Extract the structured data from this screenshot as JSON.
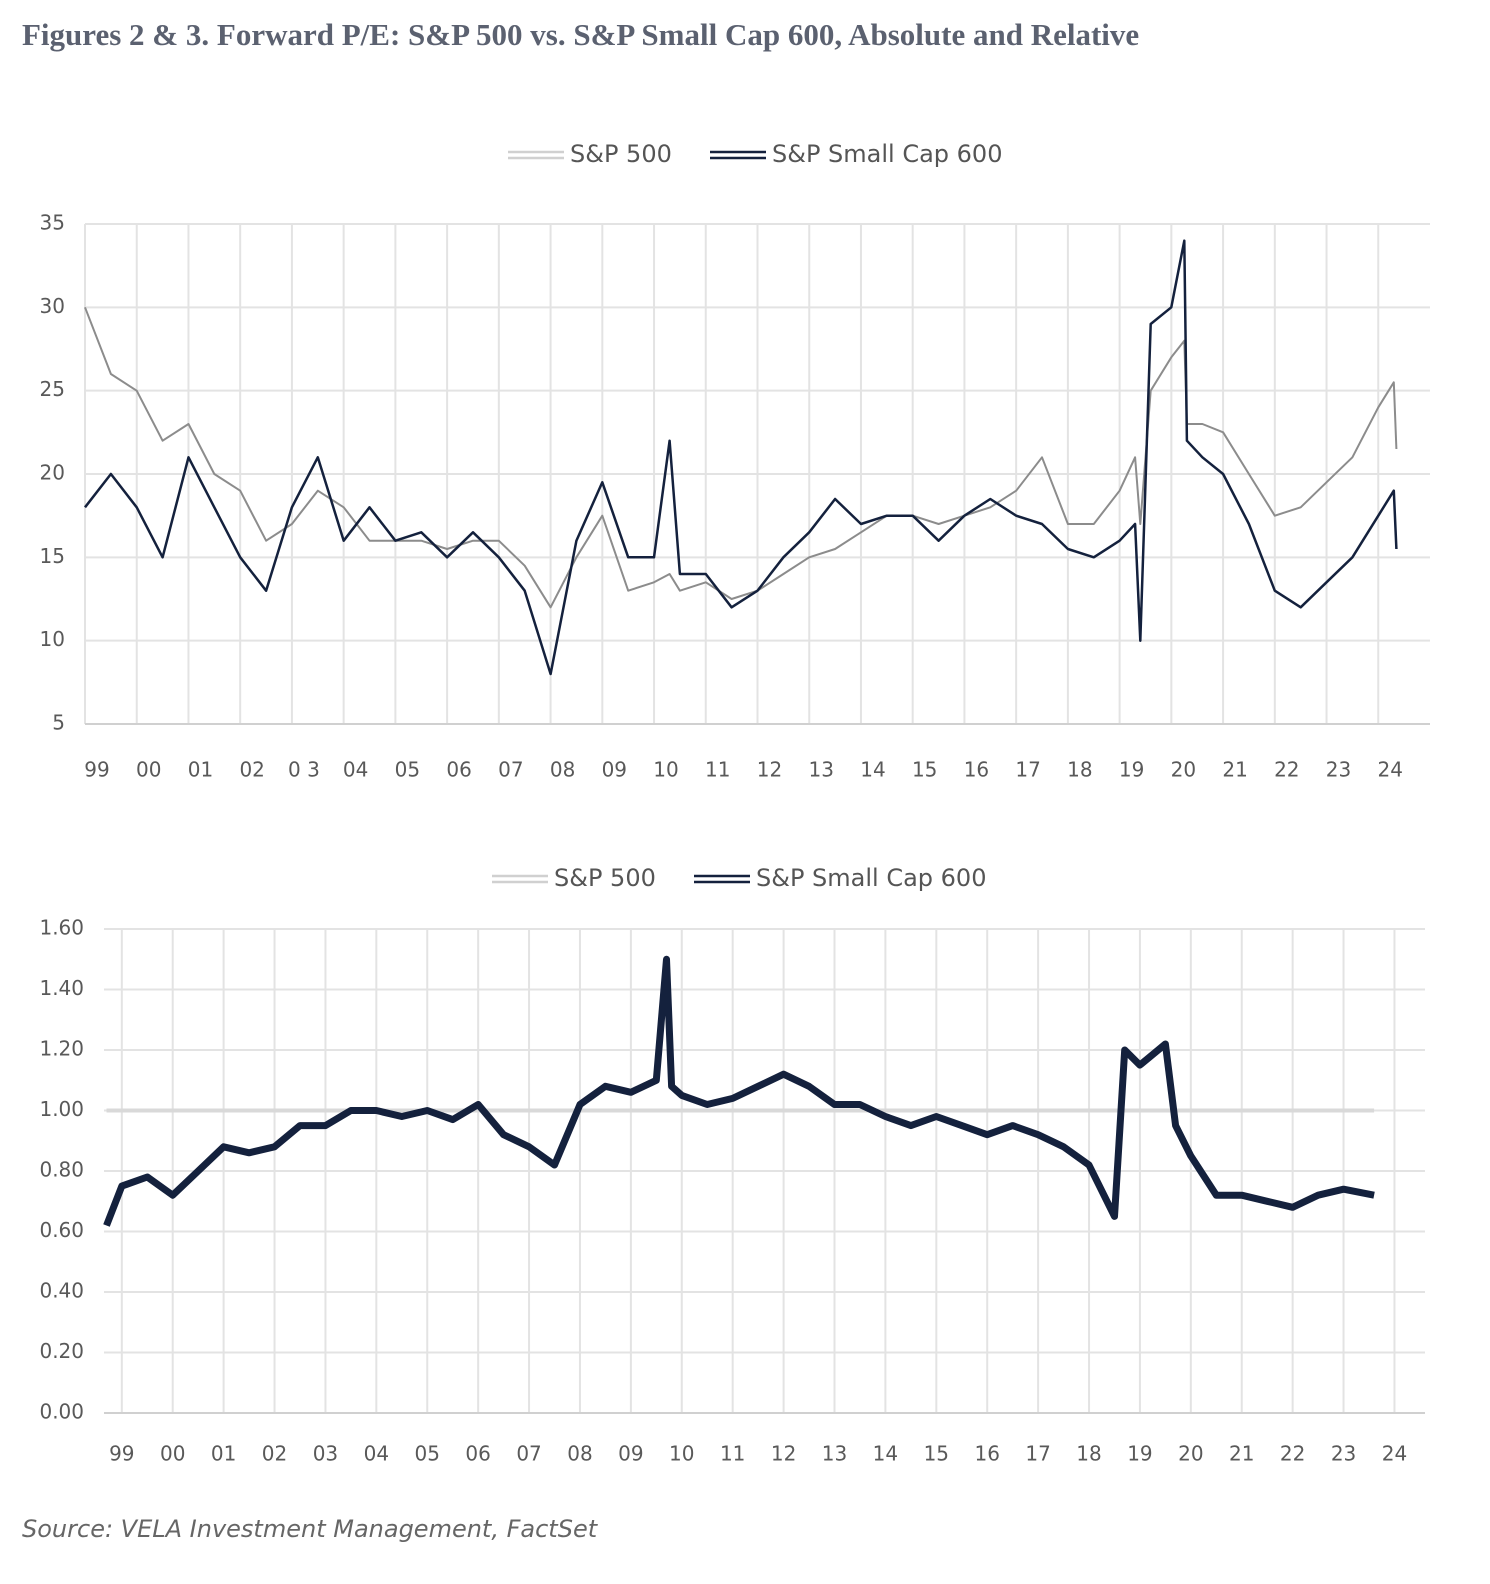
{
  "title": "Figures 2 & 3. Forward P/E: S&P 500 vs. S&P Small Cap 600, Absolute and Relative",
  "source": "Source: VELA Investment Management, FactSet",
  "chart_data": [
    {
      "type": "line",
      "legend": "top",
      "grid": true,
      "x": [
        1999,
        1999.5,
        2000,
        2000.5,
        2001,
        2001.5,
        2002,
        2002.5,
        2003,
        2003.5,
        2004,
        2004.5,
        2005,
        2005.5,
        2006,
        2006.5,
        2007,
        2007.5,
        2008,
        2008.5,
        2009,
        2009.5,
        2010,
        2010.3,
        2010.5,
        2011,
        2011.5,
        2012,
        2012.5,
        2013,
        2013.5,
        2014,
        2014.5,
        2015,
        2015.5,
        2016,
        2016.5,
        2017,
        2017.5,
        2018,
        2018.5,
        2019,
        2019.3,
        2019.4,
        2019.6,
        2020,
        2020.25,
        2020.3,
        2020.6,
        2021,
        2021.5,
        2022,
        2022.5,
        2023,
        2023.5,
        2024,
        2024.3,
        2024.35
      ],
      "series": [
        {
          "name": "S&P 500",
          "color": "#8c8c8c",
          "legend_color": "#d0d0d0",
          "values": [
            30,
            26,
            25,
            22,
            23,
            20,
            19,
            16,
            17,
            19,
            18,
            16,
            16,
            16,
            15.5,
            16,
            16,
            14.5,
            12,
            15,
            17.5,
            13,
            13.5,
            14,
            13,
            13.5,
            12.5,
            13,
            14,
            15,
            15.5,
            16.5,
            17.5,
            17.5,
            17,
            17.5,
            18,
            19,
            21,
            17,
            17,
            19,
            21,
            17,
            25,
            27,
            28,
            23,
            23,
            22.5,
            20,
            17.5,
            18,
            19.5,
            21,
            24,
            25.5,
            21.5
          ]
        },
        {
          "name": "S&P Small Cap 600",
          "color": "#14213d",
          "legend_color": "#14213d",
          "values": [
            18,
            20,
            18,
            15,
            21,
            18,
            15,
            13,
            18,
            21,
            16,
            18,
            16,
            16.5,
            15,
            16.5,
            15,
            13,
            8,
            16,
            19.5,
            15,
            15,
            22,
            14,
            14,
            12,
            13,
            15,
            16.5,
            18.5,
            17,
            17.5,
            17.5,
            16,
            17.5,
            18.5,
            17.5,
            17,
            15.5,
            15,
            16,
            17,
            10,
            29,
            30,
            34,
            22,
            21,
            20,
            17,
            13,
            12,
            13.5,
            15,
            17.5,
            19,
            15.5
          ]
        }
      ],
      "xlim": [
        1999,
        2025
      ],
      "xticks": [
        {
          "value": 1999,
          "label": "99"
        },
        {
          "value": 2000,
          "label": "00"
        },
        {
          "value": 2001,
          "label": "01"
        },
        {
          "value": 2002,
          "label": "02"
        },
        {
          "value": 2003,
          "label": "0 3"
        },
        {
          "value": 2004,
          "label": "04"
        },
        {
          "value": 2005,
          "label": "05"
        },
        {
          "value": 2006,
          "label": "06"
        },
        {
          "value": 2007,
          "label": "07"
        },
        {
          "value": 2008,
          "label": "08"
        },
        {
          "value": 2009,
          "label": "09"
        },
        {
          "value": 2010,
          "label": "10"
        },
        {
          "value": 2011,
          "label": "11"
        },
        {
          "value": 2012,
          "label": "12"
        },
        {
          "value": 2013,
          "label": "13"
        },
        {
          "value": 2014,
          "label": "14"
        },
        {
          "value": 2015,
          "label": "15"
        },
        {
          "value": 2016,
          "label": "16"
        },
        {
          "value": 2017,
          "label": "17"
        },
        {
          "value": 2018,
          "label": "18"
        },
        {
          "value": 2019,
          "label": "19"
        },
        {
          "value": 2020,
          "label": "20"
        },
        {
          "value": 2021,
          "label": "21"
        },
        {
          "value": 2022,
          "label": "22"
        },
        {
          "value": 2023,
          "label": "23"
        },
        {
          "value": 2024,
          "label": "24"
        }
      ],
      "ylim": [
        5,
        35
      ],
      "yticks": [
        5,
        10,
        15,
        20,
        25,
        30,
        35
      ]
    },
    {
      "type": "line",
      "legend": "top",
      "grid": true,
      "x": [
        1998.7,
        1999,
        1999.5,
        2000,
        2000.5,
        2001,
        2001.5,
        2002,
        2002.5,
        2003,
        2003.5,
        2004,
        2004.5,
        2005,
        2005.5,
        2006,
        2006.5,
        2007,
        2007.5,
        2008,
        2008.5,
        2009,
        2009.5,
        2009.7,
        2009.8,
        2010,
        2010.5,
        2011,
        2011.5,
        2012,
        2012.5,
        2013,
        2013.5,
        2014,
        2014.5,
        2015,
        2015.5,
        2016,
        2016.5,
        2017,
        2017.5,
        2018,
        2018.5,
        2018.7,
        2019,
        2019.5,
        2019.7,
        2020,
        2020.5,
        2021,
        2021.5,
        2022,
        2022.5,
        2023,
        2023.6
      ],
      "series": [
        {
          "name": "S&P 500",
          "color": "#d9d9d9",
          "legend_color": "#d0d0d0",
          "values": [
            1,
            1,
            1,
            1,
            1,
            1,
            1,
            1,
            1,
            1,
            1,
            1,
            1,
            1,
            1,
            1,
            1,
            1,
            1,
            1,
            1,
            1,
            1,
            1,
            1,
            1,
            1,
            1,
            1,
            1,
            1,
            1,
            1,
            1,
            1,
            1,
            1,
            1,
            1,
            1,
            1,
            1,
            1,
            1,
            1,
            1,
            1,
            1,
            1,
            1,
            1,
            1,
            1,
            1,
            1
          ]
        },
        {
          "name": "S&P Small Cap 600",
          "color": "#14213d",
          "legend_color": "#14213d",
          "values": [
            0.62,
            0.75,
            0.78,
            0.72,
            0.8,
            0.88,
            0.86,
            0.88,
            0.95,
            0.95,
            1,
            1,
            0.98,
            1,
            0.97,
            1.02,
            0.92,
            0.88,
            0.82,
            1.02,
            1.08,
            1.06,
            1.1,
            1.5,
            1.08,
            1.05,
            1.02,
            1.04,
            1.08,
            1.12,
            1.08,
            1.02,
            1.02,
            0.98,
            0.95,
            0.98,
            0.95,
            0.92,
            0.95,
            0.92,
            0.88,
            0.82,
            0.65,
            1.2,
            1.15,
            1.22,
            0.95,
            0.85,
            0.72,
            0.72,
            0.7,
            0.68,
            0.72,
            0.74,
            0.72
          ]
        }
      ],
      "xlim": [
        1998.65,
        2024.6
      ],
      "xticks": [
        {
          "value": 1999,
          "label": "99"
        },
        {
          "value": 2000,
          "label": "00"
        },
        {
          "value": 2001,
          "label": "01"
        },
        {
          "value": 2002,
          "label": "02"
        },
        {
          "value": 2003,
          "label": "03"
        },
        {
          "value": 2004,
          "label": "04"
        },
        {
          "value": 2005,
          "label": "05"
        },
        {
          "value": 2006,
          "label": "06"
        },
        {
          "value": 2007,
          "label": "07"
        },
        {
          "value": 2008,
          "label": "08"
        },
        {
          "value": 2009,
          "label": "09"
        },
        {
          "value": 2010,
          "label": "10"
        },
        {
          "value": 2011,
          "label": "11"
        },
        {
          "value": 2012,
          "label": "12"
        },
        {
          "value": 2013,
          "label": "13"
        },
        {
          "value": 2014,
          "label": "14"
        },
        {
          "value": 2015,
          "label": "15"
        },
        {
          "value": 2016,
          "label": "16"
        },
        {
          "value": 2017,
          "label": "17"
        },
        {
          "value": 2018,
          "label": "18"
        },
        {
          "value": 2019,
          "label": "19"
        },
        {
          "value": 2020,
          "label": "20"
        },
        {
          "value": 2021,
          "label": "21"
        },
        {
          "value": 2022,
          "label": "22"
        },
        {
          "value": 2023,
          "label": "23"
        },
        {
          "value": 2024,
          "label": "24"
        }
      ],
      "ylim": [
        0,
        1.6
      ],
      "yticks": [
        {
          "value": 0,
          "label": "0.00"
        },
        {
          "value": 0.2,
          "label": "0.20"
        },
        {
          "value": 0.4,
          "label": "0.40"
        },
        {
          "value": 0.6,
          "label": "0.60"
        },
        {
          "value": 0.8,
          "label": "0.80"
        },
        {
          "value": 1,
          "label": "1.00"
        },
        {
          "value": 1.2,
          "label": "1.20"
        },
        {
          "value": 1.4,
          "label": "1.40"
        },
        {
          "value": 1.6,
          "label": "1.60"
        }
      ]
    }
  ]
}
